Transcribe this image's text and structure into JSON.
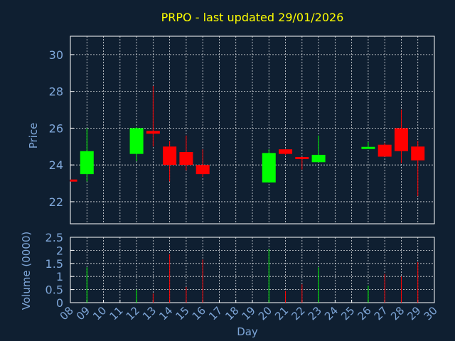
{
  "chart_data": {
    "type": "candlestick",
    "title": "PRPO - last updated 29/01/2026",
    "xlabel": "Day",
    "price_panel": {
      "ylabel": "Price",
      "ylim": [
        20.8,
        31.0
      ],
      "yticks": [
        "22",
        "24",
        "26",
        "28",
        "30"
      ],
      "ytick_values": [
        22,
        24,
        26,
        28,
        30
      ]
    },
    "volume_panel": {
      "ylabel": "Volume (0000)",
      "ylim": [
        0,
        2.5
      ],
      "yticks": [
        "0",
        "0.5",
        "1",
        "1.5",
        "2",
        "2.5"
      ],
      "ytick_values": [
        0,
        0.5,
        1,
        1.5,
        2,
        2.5
      ]
    },
    "x_ticks": [
      "08",
      "09",
      "10",
      "11",
      "12",
      "13",
      "14",
      "15",
      "16",
      "17",
      "18",
      "19",
      "20",
      "21",
      "22",
      "23",
      "24",
      "25",
      "26",
      "27",
      "28",
      "29",
      "30"
    ],
    "grid": true,
    "colors": {
      "up": "#00ff00",
      "down": "#ff0000",
      "title": "#ffff00",
      "axis": "#7ea6d8",
      "background": "#0f1f31"
    },
    "candles": [
      {
        "day": 8,
        "open": 23.2,
        "high": 23.2,
        "low": 23.1,
        "close": 23.1,
        "volume": 0
      },
      {
        "day": 9,
        "open": 23.5,
        "high": 26.0,
        "low": 23.1,
        "close": 24.75,
        "volume": 1.35
      },
      {
        "day": 12,
        "open": 24.6,
        "high": 26.05,
        "low": 24.2,
        "close": 26.0,
        "volume": 0.5
      },
      {
        "day": 13,
        "open": 25.85,
        "high": 28.3,
        "low": 25.0,
        "close": 25.7,
        "volume": 0.35
      },
      {
        "day": 14,
        "open": 25.0,
        "high": 25.3,
        "low": 23.1,
        "close": 24.0,
        "volume": 1.85
      },
      {
        "day": 15,
        "open": 24.7,
        "high": 25.6,
        "low": 23.7,
        "close": 24.0,
        "volume": 0.6
      },
      {
        "day": 16,
        "open": 24.0,
        "high": 24.85,
        "low": 23.35,
        "close": 23.5,
        "volume": 1.65
      },
      {
        "day": 20,
        "open": 23.05,
        "high": 24.85,
        "low": 23.05,
        "close": 24.65,
        "volume": 2.05
      },
      {
        "day": 21,
        "open": 24.85,
        "high": 24.85,
        "low": 24.55,
        "close": 24.6,
        "volume": 0.45
      },
      {
        "day": 22,
        "open": 24.4,
        "high": 24.45,
        "low": 23.75,
        "close": 24.35,
        "volume": 0.7
      },
      {
        "day": 23,
        "open": 24.15,
        "high": 25.6,
        "low": 24.15,
        "close": 24.55,
        "volume": 1.35
      },
      {
        "day": 26,
        "open": 24.9,
        "high": 25.25,
        "low": 24.9,
        "close": 24.95,
        "volume": 0.65
      },
      {
        "day": 27,
        "open": 25.1,
        "high": 25.2,
        "low": 24.45,
        "close": 24.45,
        "volume": 1.1
      },
      {
        "day": 28,
        "open": 26.0,
        "high": 27.0,
        "low": 24.1,
        "close": 24.75,
        "volume": 1.0
      },
      {
        "day": 29,
        "open": 25.0,
        "high": 25.3,
        "low": 22.3,
        "close": 24.25,
        "volume": 1.55
      }
    ]
  }
}
